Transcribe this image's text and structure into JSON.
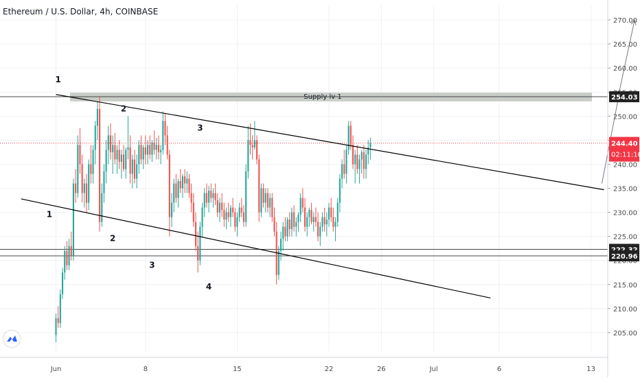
{
  "title": "Ethereum / U.S. Dollar, 4h, COINBASE",
  "colors": {
    "up": "#26a69a",
    "down": "#ef5350",
    "price_line": "#f23645",
    "price_label_bg": "#f23645",
    "level_label_bg": "#222222",
    "trendline": "#000000",
    "supply_zone": "#c9cdc8",
    "grid": "#eef0f3",
    "axis_text": "#4a4a4a"
  },
  "chart_data": {
    "type": "candlestick",
    "title": "Ethereum / U.S. Dollar, 4h, COINBASE",
    "ylim": [
      201,
      273
    ],
    "y_ticks": [
      205,
      210,
      215,
      220,
      225,
      230,
      235,
      240,
      245,
      250,
      255,
      260,
      265,
      270
    ],
    "x_tick_labels": [
      "Jun",
      "8",
      "15",
      "22",
      "26",
      "Jul",
      "6",
      "13"
    ],
    "x_tick_index": [
      0,
      41,
      83,
      125,
      149,
      173,
      203,
      245
    ],
    "last_price": {
      "value": "244.40",
      "countdown": "02:11:16"
    },
    "horizontal_levels": [
      {
        "value": 254.03,
        "label": "254.03"
      },
      {
        "value": 222.32,
        "label": "222.32"
      },
      {
        "value": 220.96,
        "label": "220.96"
      }
    ],
    "supply_zone": {
      "label": "Supply lv 1",
      "from": 253.5,
      "to": 254.6
    },
    "trendlines": [
      {
        "name": "upper-channel",
        "from": {
          "x": 0,
          "y": 254.5
        },
        "to": {
          "x": 251,
          "y": 234.7
        }
      },
      {
        "name": "lower-channel",
        "from": {
          "x": -16,
          "y": 232.8
        },
        "to": {
          "x": 199,
          "y": 212.2
        }
      }
    ],
    "projection_arrows": [
      {
        "from": {
          "x": 250,
          "y": 236.0
        },
        "to": {
          "x": 258,
          "y": 254.8
        }
      },
      {
        "from": {
          "x": 258,
          "y": 255.2
        },
        "to": {
          "x": 265,
          "y": 270.0
        }
      }
    ],
    "annotations": [
      {
        "text": "1",
        "x": 1,
        "y": 257.0
      },
      {
        "text": "2",
        "x": 31,
        "y": 251.0
      },
      {
        "text": "3",
        "x": 66,
        "y": 247.0
      },
      {
        "text": "1",
        "x": -3,
        "y": 229.0
      },
      {
        "text": "2",
        "x": 26,
        "y": 224.0
      },
      {
        "text": "3",
        "x": 44,
        "y": 218.5
      },
      {
        "text": "4",
        "x": 70,
        "y": 214.0
      }
    ],
    "candles": [
      [
        204.5,
        209.0,
        203.0,
        208.0
      ],
      [
        208.0,
        210.5,
        206.0,
        207.0
      ],
      [
        207.0,
        214.0,
        206.0,
        213.0
      ],
      [
        213.0,
        218.5,
        212.0,
        217.5
      ],
      [
        217.5,
        223.0,
        216.0,
        222.0
      ],
      [
        222.0,
        224.0,
        218.0,
        219.0
      ],
      [
        219.0,
        224.5,
        218.0,
        223.0
      ],
      [
        223.0,
        226.0,
        220.0,
        221.0
      ],
      [
        221.0,
        237.0,
        220.0,
        236.0
      ],
      [
        236.0,
        239.0,
        232.0,
        234.0
      ],
      [
        234.0,
        246.0,
        233.0,
        244.0
      ],
      [
        244.0,
        247.5,
        238.0,
        240.0
      ],
      [
        240.0,
        242.0,
        232.0,
        234.0
      ],
      [
        234.0,
        237.0,
        231.0,
        236.0
      ],
      [
        236.0,
        238.0,
        230.0,
        232.0
      ],
      [
        232.0,
        241.0,
        230.5,
        240.0
      ],
      [
        240.0,
        244.0,
        236.0,
        238.0
      ],
      [
        238.0,
        244.0,
        236.0,
        243.0
      ],
      [
        243.0,
        249.0,
        240.0,
        248.0
      ],
      [
        248.0,
        253.0,
        245.0,
        251.5
      ],
      [
        251.5,
        254.0,
        226.0,
        228.0
      ],
      [
        228.0,
        236.0,
        227.0,
        234.0
      ],
      [
        234.0,
        240.0,
        232.0,
        238.5
      ],
      [
        238.5,
        245.0,
        236.0,
        243.0
      ],
      [
        243.0,
        248.0,
        240.0,
        246.0
      ],
      [
        246.0,
        248.5,
        241.0,
        242.5
      ],
      [
        242.5,
        246.0,
        238.0,
        244.0
      ],
      [
        244.0,
        246.5,
        240.0,
        241.0
      ],
      [
        241.0,
        244.0,
        238.0,
        243.0
      ],
      [
        243.0,
        245.0,
        239.0,
        240.5
      ],
      [
        240.5,
        243.0,
        237.0,
        242.0
      ],
      [
        242.0,
        244.0,
        238.5,
        239.0
      ],
      [
        239.0,
        243.5,
        237.0,
        243.0
      ],
      [
        243.0,
        250.0,
        241.0,
        243.5
      ],
      [
        243.5,
        246.0,
        236.0,
        238.0
      ],
      [
        238.0,
        242.0,
        235.0,
        241.0
      ],
      [
        241.0,
        243.0,
        236.0,
        237.0
      ],
      [
        237.0,
        242.0,
        235.0,
        240.0
      ],
      [
        240.0,
        245.0,
        238.0,
        244.0
      ],
      [
        244.0,
        246.0,
        240.0,
        241.0
      ],
      [
        241.0,
        244.0,
        239.0,
        243.5
      ],
      [
        243.5,
        246.0,
        240.0,
        242.0
      ],
      [
        242.0,
        245.0,
        240.0,
        244.0
      ],
      [
        244.0,
        246.0,
        241.0,
        242.0
      ],
      [
        242.0,
        245.0,
        240.5,
        244.5
      ],
      [
        244.5,
        247.0,
        242.0,
        243.0
      ],
      [
        243.0,
        245.5,
        241.0,
        244.0
      ],
      [
        244.0,
        246.0,
        241.0,
        242.5
      ],
      [
        242.5,
        244.0,
        240.0,
        243.0
      ],
      [
        243.0,
        251.0,
        242.0,
        249.0
      ],
      [
        249.0,
        250.5,
        244.0,
        246.0
      ],
      [
        246.0,
        248.0,
        241.0,
        242.0
      ],
      [
        242.0,
        243.0,
        225.0,
        229.0
      ],
      [
        229.0,
        234.0,
        227.0,
        232.0
      ],
      [
        232.0,
        237.0,
        230.0,
        236.0
      ],
      [
        236.0,
        238.0,
        232.0,
        233.0
      ],
      [
        233.0,
        237.0,
        231.0,
        236.5
      ],
      [
        236.5,
        239.0,
        234.0,
        235.0
      ],
      [
        235.0,
        238.0,
        233.0,
        237.5
      ],
      [
        237.5,
        239.0,
        234.0,
        236.0
      ],
      [
        236.0,
        238.5,
        234.0,
        237.0
      ],
      [
        237.0,
        238.0,
        233.0,
        234.0
      ],
      [
        234.0,
        236.0,
        230.0,
        232.0
      ],
      [
        232.0,
        234.0,
        227.0,
        228.0
      ],
      [
        228.0,
        230.0,
        222.0,
        223.0
      ],
      [
        223.0,
        226.0,
        217.5,
        220.0
      ],
      [
        220.0,
        228.0,
        219.0,
        227.0
      ],
      [
        227.0,
        232.0,
        225.0,
        231.0
      ],
      [
        231.0,
        235.0,
        229.0,
        234.0
      ],
      [
        234.0,
        236.0,
        231.0,
        232.0
      ],
      [
        232.0,
        235.5,
        230.0,
        234.5
      ],
      [
        234.5,
        236.0,
        232.0,
        233.0
      ],
      [
        233.0,
        235.0,
        231.0,
        234.0
      ],
      [
        234.0,
        236.0,
        231.5,
        232.5
      ],
      [
        232.5,
        234.0,
        229.0,
        230.0
      ],
      [
        230.0,
        233.0,
        228.0,
        232.0
      ],
      [
        232.0,
        234.0,
        229.0,
        230.5
      ],
      [
        230.5,
        232.0,
        227.0,
        228.5
      ],
      [
        228.5,
        231.0,
        226.5,
        230.0
      ],
      [
        230.0,
        232.0,
        228.0,
        229.0
      ],
      [
        229.0,
        231.5,
        227.0,
        231.0
      ],
      [
        231.0,
        233.0,
        229.0,
        230.0
      ],
      [
        230.0,
        231.0,
        226.0,
        227.0
      ],
      [
        227.0,
        230.0,
        225.0,
        229.0
      ],
      [
        229.0,
        232.0,
        228.0,
        231.0
      ],
      [
        231.0,
        233.0,
        229.0,
        230.0
      ],
      [
        230.0,
        231.5,
        227.0,
        228.0
      ],
      [
        228.0,
        240.0,
        227.0,
        238.5
      ],
      [
        238.5,
        248.0,
        237.0,
        245.0
      ],
      [
        245.0,
        248.5,
        242.0,
        244.0
      ],
      [
        244.0,
        246.0,
        241.0,
        243.5
      ],
      [
        243.5,
        249.0,
        243.0,
        245.0
      ],
      [
        245.0,
        246.0,
        240.0,
        241.0
      ],
      [
        241.0,
        242.0,
        228.0,
        230.0
      ],
      [
        230.0,
        236.0,
        229.0,
        235.0
      ],
      [
        235.0,
        236.0,
        231.0,
        232.0
      ],
      [
        232.0,
        235.0,
        230.0,
        234.0
      ],
      [
        234.0,
        235.0,
        230.0,
        231.0
      ],
      [
        231.0,
        234.0,
        229.0,
        233.0
      ],
      [
        233.0,
        234.0,
        228.0,
        229.0
      ],
      [
        229.0,
        231.0,
        225.0,
        226.0
      ],
      [
        226.0,
        228.0,
        215.0,
        217.0
      ],
      [
        217.0,
        223.0,
        216.0,
        222.0
      ],
      [
        222.0,
        226.0,
        220.0,
        224.5
      ],
      [
        224.5,
        228.0,
        222.0,
        227.0
      ],
      [
        227.0,
        229.0,
        224.0,
        225.0
      ],
      [
        225.0,
        229.0,
        224.0,
        228.5
      ],
      [
        228.5,
        230.0,
        225.0,
        226.5
      ],
      [
        226.5,
        231.0,
        225.0,
        230.0
      ],
      [
        230.0,
        231.5,
        226.0,
        227.0
      ],
      [
        227.0,
        229.0,
        225.0,
        228.0
      ],
      [
        228.0,
        230.0,
        226.0,
        229.5
      ],
      [
        229.5,
        234.0,
        228.0,
        233.0
      ],
      [
        233.0,
        235.0,
        230.0,
        231.0
      ],
      [
        231.0,
        233.0,
        226.0,
        227.0
      ],
      [
        227.0,
        230.0,
        225.0,
        229.0
      ],
      [
        229.0,
        231.0,
        227.0,
        230.5
      ],
      [
        230.5,
        232.0,
        227.5,
        228.0
      ],
      [
        228.0,
        230.0,
        226.0,
        229.0
      ],
      [
        229.0,
        231.0,
        227.0,
        228.0
      ],
      [
        228.0,
        230.0,
        224.0,
        225.0
      ],
      [
        225.0,
        228.0,
        223.0,
        227.0
      ],
      [
        227.0,
        230.0,
        226.0,
        229.0
      ],
      [
        229.0,
        231.0,
        226.0,
        227.5
      ],
      [
        227.5,
        230.0,
        225.0,
        228.5
      ],
      [
        228.5,
        232.0,
        227.0,
        231.0
      ],
      [
        231.0,
        233.0,
        228.0,
        229.0
      ],
      [
        229.0,
        231.0,
        226.0,
        227.0
      ],
      [
        227.0,
        229.0,
        224.0,
        228.0
      ],
      [
        228.0,
        233.0,
        227.0,
        232.0
      ],
      [
        232.0,
        238.0,
        230.0,
        237.0
      ],
      [
        237.0,
        241.0,
        235.0,
        240.0
      ],
      [
        240.0,
        243.0,
        237.0,
        238.0
      ],
      [
        238.0,
        244.0,
        236.0,
        243.0
      ],
      [
        243.0,
        249.0,
        242.0,
        248.0
      ],
      [
        248.0,
        249.0,
        243.0,
        244.0
      ],
      [
        244.0,
        246.0,
        239.0,
        240.0
      ],
      [
        240.0,
        243.0,
        236.0,
        242.0
      ],
      [
        242.0,
        244.0,
        238.0,
        239.0
      ],
      [
        239.0,
        242.0,
        236.0,
        241.0
      ],
      [
        241.0,
        243.0,
        238.0,
        242.5
      ],
      [
        242.5,
        244.0,
        237.0,
        239.0
      ],
      [
        239.0,
        243.0,
        237.0,
        242.0
      ],
      [
        242.0,
        245.0,
        240.0,
        243.5
      ],
      [
        243.5,
        245.5,
        241.0,
        244.4
      ]
    ]
  }
}
